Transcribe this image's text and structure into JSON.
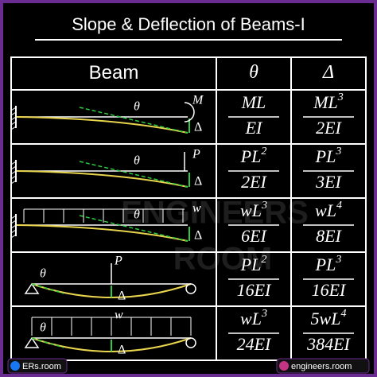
{
  "title": "Slope & Deflection of Beams-I",
  "table": {
    "header": [
      "Beam",
      "θ",
      "Δ"
    ],
    "rows": [
      {
        "labels": [
          "θ",
          "M",
          "Δ"
        ],
        "theta": {
          "num": "ML",
          "sup": null,
          "den": "EI"
        },
        "delta": {
          "num": "ML",
          "sup": "3",
          "den": "2EI"
        }
      },
      {
        "labels": [
          "θ",
          "P",
          "Δ"
        ],
        "theta": {
          "num": "PL",
          "sup": "2",
          "den": "2EI"
        },
        "delta": {
          "num": "PL",
          "sup": "3",
          "den": "3EI"
        }
      },
      {
        "labels": [
          "θ",
          "w",
          "Δ"
        ],
        "theta": {
          "num": "wL",
          "sup": "3",
          "den": "6EI"
        },
        "delta": {
          "num": "wL",
          "sup": "4",
          "den": "8EI"
        }
      },
      {
        "labels": [
          "θ",
          "P",
          "Δ"
        ],
        "theta": {
          "num": "PL",
          "sup": "2",
          "den": "16EI"
        },
        "delta": {
          "num": "PL",
          "sup": "3",
          "den": "16EI"
        }
      },
      {
        "labels": [
          "θ",
          "w",
          "Δ"
        ],
        "theta": {
          "num": "wL",
          "sup": "3",
          "den": "24EI"
        },
        "delta": {
          "num": "5wL",
          "sup": "4",
          "den": "384EI"
        }
      }
    ]
  },
  "watermark": [
    "ENGINEERS",
    "ROOM"
  ],
  "footer": [
    "ERs.room",
    "engineers.room"
  ]
}
